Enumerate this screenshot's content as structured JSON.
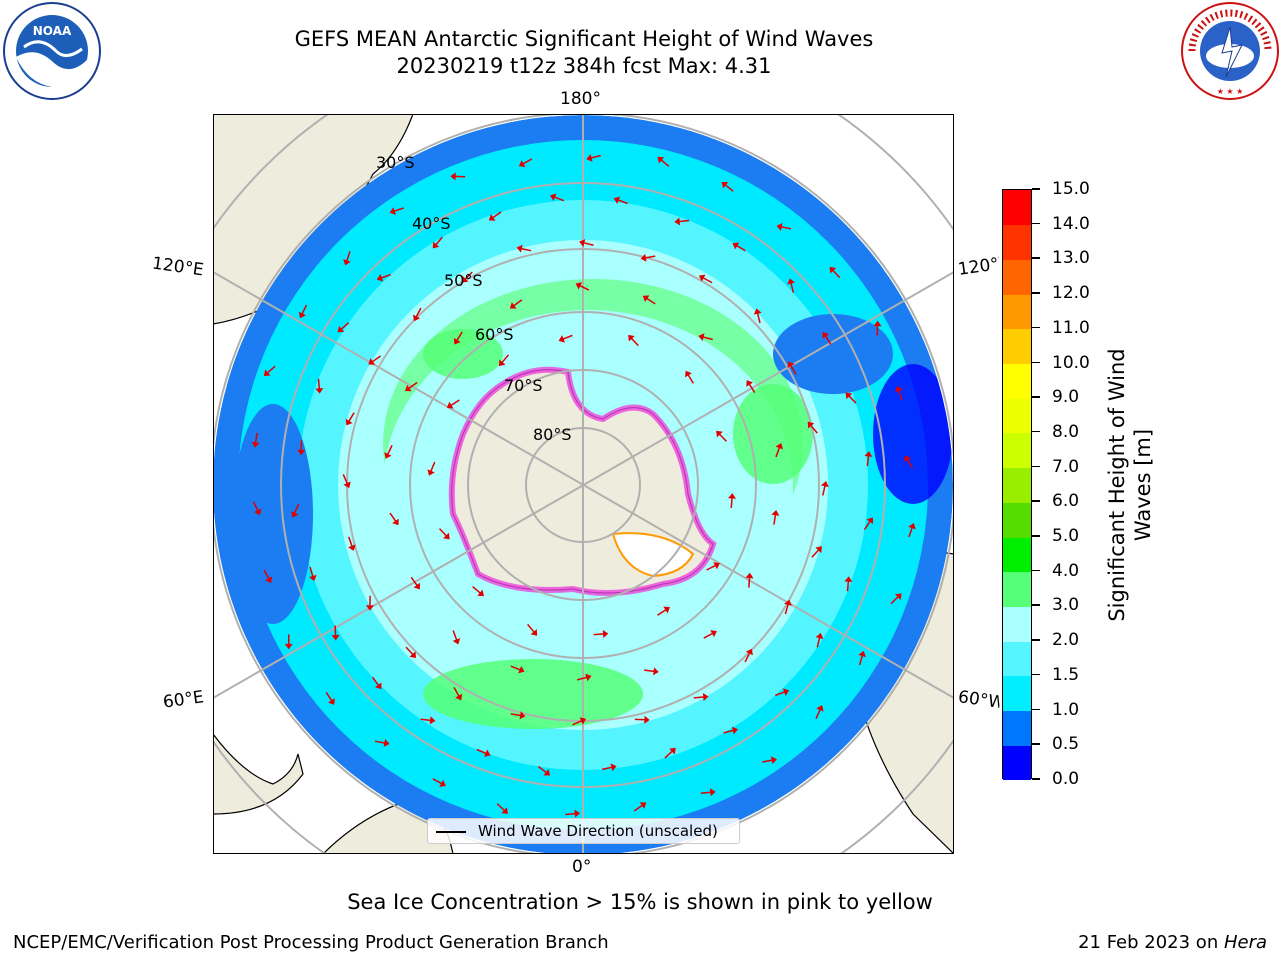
{
  "title": {
    "line1": "GEFS MEAN Antarctic Significant Height of Wind Waves",
    "line2": "20230219 t12z 384h fcst   Max: 4.31"
  },
  "logos": {
    "left": "NOAA",
    "left_ring_text": "NATIONAL OCEANIC AND ATMOSPHERIC ADMINISTRATION · U.S. DEPARTMENT OF COMMERCE",
    "right_ring_text": "NATIONAL WEATHER SERVICE"
  },
  "map": {
    "projection": "south-polar-stereographic",
    "meridian_labels": {
      "top": "180°",
      "bottom": "0°",
      "upper_left": "120°E",
      "lower_left": "60°E",
      "upper_right": "120°W",
      "lower_right": "60°W"
    },
    "latitude_labels": [
      "30°S",
      "40°S",
      "50°S",
      "60°S",
      "70°S",
      "80°S"
    ],
    "legend": "Wind Wave Direction (unscaled)",
    "land_color": "#eeecdc",
    "arrow_color": "#e00000",
    "grid_color": "#b0b0b0"
  },
  "colorbar": {
    "label": "Significant Height of Wind Waves [m]",
    "tick_labels": [
      "0.0",
      "0.5",
      "1.0",
      "1.5",
      "2.0",
      "3.0",
      "4.0",
      "5.0",
      "6.0",
      "7.0",
      "8.0",
      "9.0",
      "10.0",
      "11.0",
      "12.0",
      "13.0",
      "14.0",
      "15.0"
    ],
    "colors": [
      "#0000ff",
      "#0077ff",
      "#00eeff",
      "#55f5ff",
      "#aaffff",
      "#55ff77",
      "#00ee00",
      "#55dd00",
      "#99ee00",
      "#ccff00",
      "#eeff00",
      "#ffff00",
      "#ffcc00",
      "#ff9900",
      "#ff6600",
      "#ff3300",
      "#ff0000"
    ]
  },
  "caption": "Sea Ice Concentration > 15% is shown in pink to yellow",
  "footer": {
    "left": "NCEP/EMC/Verification Post Processing Product Generation Branch",
    "right_date": "21 Feb 2023 on ",
    "right_host": "Hera"
  }
}
